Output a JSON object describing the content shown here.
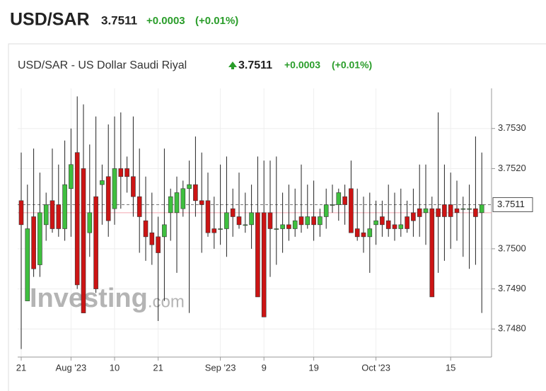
{
  "header": {
    "symbol": "USD/SAR",
    "change": "+0.0003",
    "change_pct": "(+0.01%)"
  },
  "chart_data": {
    "type": "candlestick",
    "title": "USD/SAR - US Dollar Saudi Riyal",
    "last": 3.7511,
    "reference_line": 3.7509,
    "watermark": [
      "Investing",
      ".com"
    ],
    "up_color": "#3fbf3f",
    "down_color": "#cc1414",
    "grid": true,
    "ylim": [
      3.7473,
      3.754
    ],
    "yticks": [
      {
        "value": 3.748,
        "label": "3.7480"
      },
      {
        "value": 3.749,
        "label": "3.7490"
      },
      {
        "value": 3.75,
        "label": "3.7500"
      },
      {
        "value": 3.752,
        "label": "3.7520"
      },
      {
        "value": 3.753,
        "label": "3.7530"
      }
    ],
    "xticks": [
      {
        "value": 0,
        "label": "21"
      },
      {
        "value": 8,
        "label": "Aug '23"
      },
      {
        "value": 15,
        "label": "10"
      },
      {
        "value": 22,
        "label": "21"
      },
      {
        "value": 32,
        "label": "Sep '23"
      },
      {
        "value": 39,
        "label": "9"
      },
      {
        "value": 47,
        "label": "19"
      },
      {
        "value": 57,
        "label": "Oct '23"
      },
      {
        "value": 69,
        "label": "15"
      }
    ],
    "open": [
      3.7512,
      3.7487,
      3.7508,
      3.7496,
      3.7506,
      3.7512,
      3.7511,
      3.7505,
      3.7515,
      3.7524,
      3.752,
      3.7504,
      3.7513,
      3.7516,
      3.7518,
      3.751,
      3.752,
      3.752,
      3.7518,
      3.7513,
      3.7507,
      3.7504,
      3.7503,
      3.7503,
      3.7509,
      3.7509,
      3.751,
      3.7515,
      3.7516,
      3.7512,
      3.7512,
      3.7505,
      3.7505,
      3.7505,
      3.751,
      3.7508,
      3.7506,
      3.7506,
      3.7509,
      3.7509,
      3.7509,
      3.7505,
      3.7505,
      3.7506,
      3.7505,
      3.7508,
      3.7506,
      3.7508,
      3.7506,
      3.7508,
      3.7511,
      3.7511,
      3.7513,
      3.7515,
      3.7505,
      3.7504,
      3.7503,
      3.7506,
      3.7508,
      3.7507,
      3.7506,
      3.7505,
      3.7508,
      3.7509,
      3.751,
      3.7509,
      3.751,
      3.751,
      3.7511,
      3.7511,
      3.751,
      3.751,
      3.751,
      3.751,
      3.7509
    ],
    "high": [
      3.7524,
      3.7516,
      3.7525,
      3.7519,
      3.7514,
      3.7525,
      3.7521,
      3.7527,
      3.753,
      3.7538,
      3.7536,
      3.7526,
      3.7533,
      3.7521,
      3.7531,
      3.7533,
      3.7534,
      3.7523,
      3.7533,
      3.7525,
      3.7518,
      3.7514,
      3.7508,
      3.7525,
      3.7515,
      3.7518,
      3.7517,
      3.7522,
      3.7528,
      3.7524,
      3.7519,
      3.7513,
      3.7521,
      3.7523,
      3.7515,
      3.7519,
      3.7514,
      3.7516,
      3.7523,
      3.7522,
      3.7522,
      3.7523,
      3.7514,
      3.7516,
      3.7515,
      3.7521,
      3.7516,
      3.7517,
      3.751,
      3.7515,
      3.7516,
      3.7515,
      3.7516,
      3.7522,
      3.7515,
      3.7513,
      3.7514,
      3.7512,
      3.7512,
      3.7516,
      3.7514,
      3.7515,
      3.7512,
      3.7515,
      3.7521,
      3.7521,
      3.7513,
      3.7534,
      3.7521,
      3.7519,
      3.7517,
      3.7513,
      3.7516,
      3.7528,
      3.7524
    ],
    "low": [
      3.7475,
      3.7487,
      3.7493,
      3.7493,
      3.7502,
      3.7504,
      3.7503,
      3.7502,
      3.7503,
      3.749,
      3.7484,
      3.7498,
      3.7489,
      3.7506,
      3.7503,
      3.7506,
      3.751,
      3.7514,
      3.7508,
      3.7499,
      3.7497,
      3.7496,
      3.7482,
      3.7487,
      3.7502,
      3.7494,
      3.7508,
      3.7484,
      3.7508,
      3.7499,
      3.7503,
      3.75,
      3.7501,
      3.7498,
      3.7503,
      3.7505,
      3.7504,
      3.75,
      3.7488,
      3.7483,
      3.7493,
      3.7496,
      3.7499,
      3.7502,
      3.7503,
      3.7504,
      3.7505,
      3.7502,
      3.7503,
      3.7505,
      3.7509,
      3.7507,
      3.7506,
      3.7504,
      3.7502,
      3.7499,
      3.7494,
      3.7501,
      3.7503,
      3.7503,
      3.7502,
      3.7503,
      3.7504,
      3.7503,
      3.7503,
      3.7501,
      3.7488,
      3.7494,
      3.7497,
      3.75,
      3.7502,
      3.7498,
      3.7495,
      3.7496,
      3.7484
    ],
    "close": [
      3.7506,
      3.7505,
      3.7495,
      3.7509,
      3.7511,
      3.7505,
      3.7505,
      3.7516,
      3.7521,
      3.7491,
      3.7484,
      3.7509,
      3.749,
      3.7517,
      3.7507,
      3.752,
      3.7518,
      3.7518,
      3.7513,
      3.7508,
      3.7503,
      3.7501,
      3.7499,
      3.7506,
      3.7513,
      3.7514,
      3.7515,
      3.7516,
      3.7512,
      3.7511,
      3.7504,
      3.7504,
      3.7505,
      3.7509,
      3.7508,
      3.7506,
      3.7506,
      3.7509,
      3.7488,
      3.7483,
      3.7505,
      3.7505,
      3.7506,
      3.7505,
      3.7507,
      3.7506,
      3.7508,
      3.7506,
      3.7508,
      3.7511,
      3.7511,
      3.7514,
      3.7511,
      3.7504,
      3.7503,
      3.7503,
      3.7505,
      3.7507,
      3.7506,
      3.7505,
      3.7505,
      3.7506,
      3.7505,
      3.7507,
      3.7508,
      3.751,
      3.7488,
      3.7508,
      3.7508,
      3.7508,
      3.7509,
      3.751,
      3.751,
      3.7508,
      3.7511
    ]
  }
}
